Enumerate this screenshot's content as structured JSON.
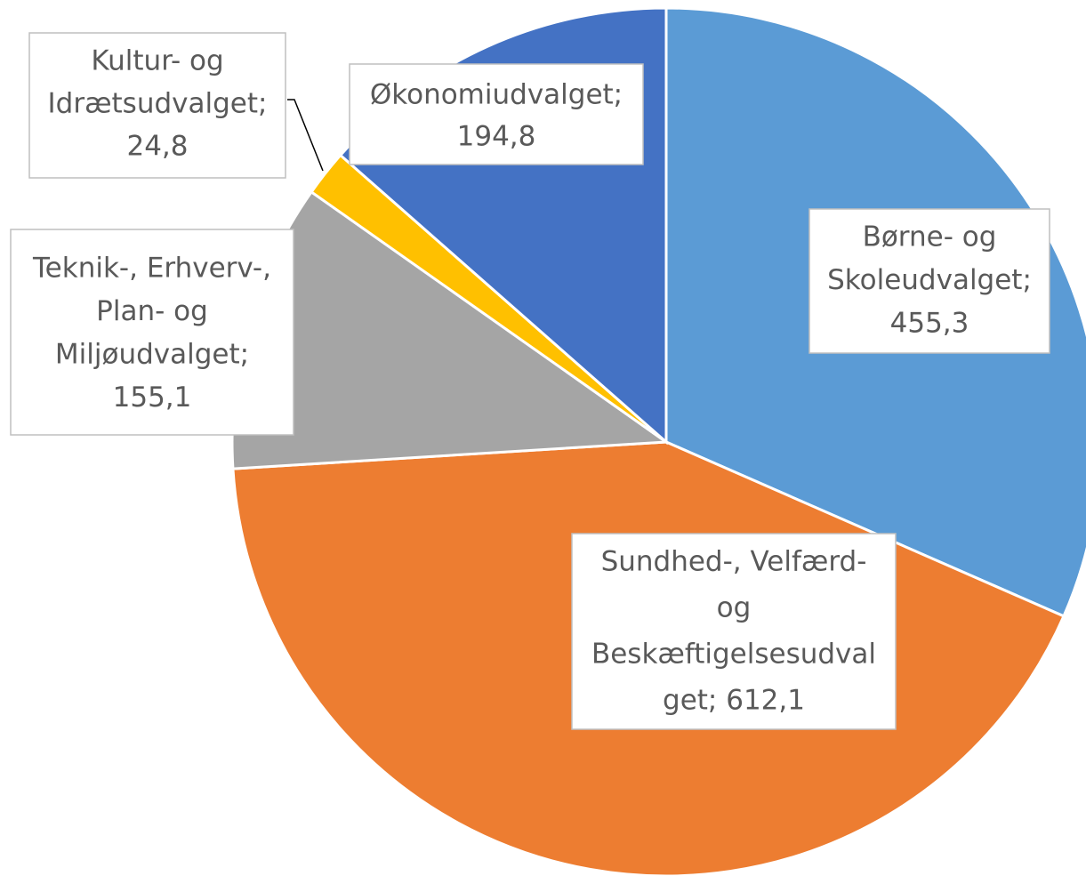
{
  "chart_data": {
    "type": "pie",
    "values": [
      455.3,
      612.1,
      155.1,
      24.8,
      194.8
    ],
    "labels": [
      [
        "Børne- og",
        "Skoleudvalget;",
        "455,3"
      ],
      [
        "Sundhed-, Velfærd-",
        "og",
        "Beskæftigelsesudval",
        "get; 612,1"
      ],
      [
        "Teknik-, Erhverv-,",
        "Plan- og",
        "Miljøudvalget;",
        "155,1"
      ],
      [
        "Kultur- og",
        "Idrætsudvalget;",
        "24,8"
      ],
      [
        "Økonomiudvalget;",
        "194,8"
      ]
    ],
    "colors": [
      "#5b9bd5",
      "#ed7d31",
      "#a5a5a5",
      "#ffc000",
      "#4472c4"
    ],
    "start_angle": 0,
    "direction": "clockwise"
  }
}
